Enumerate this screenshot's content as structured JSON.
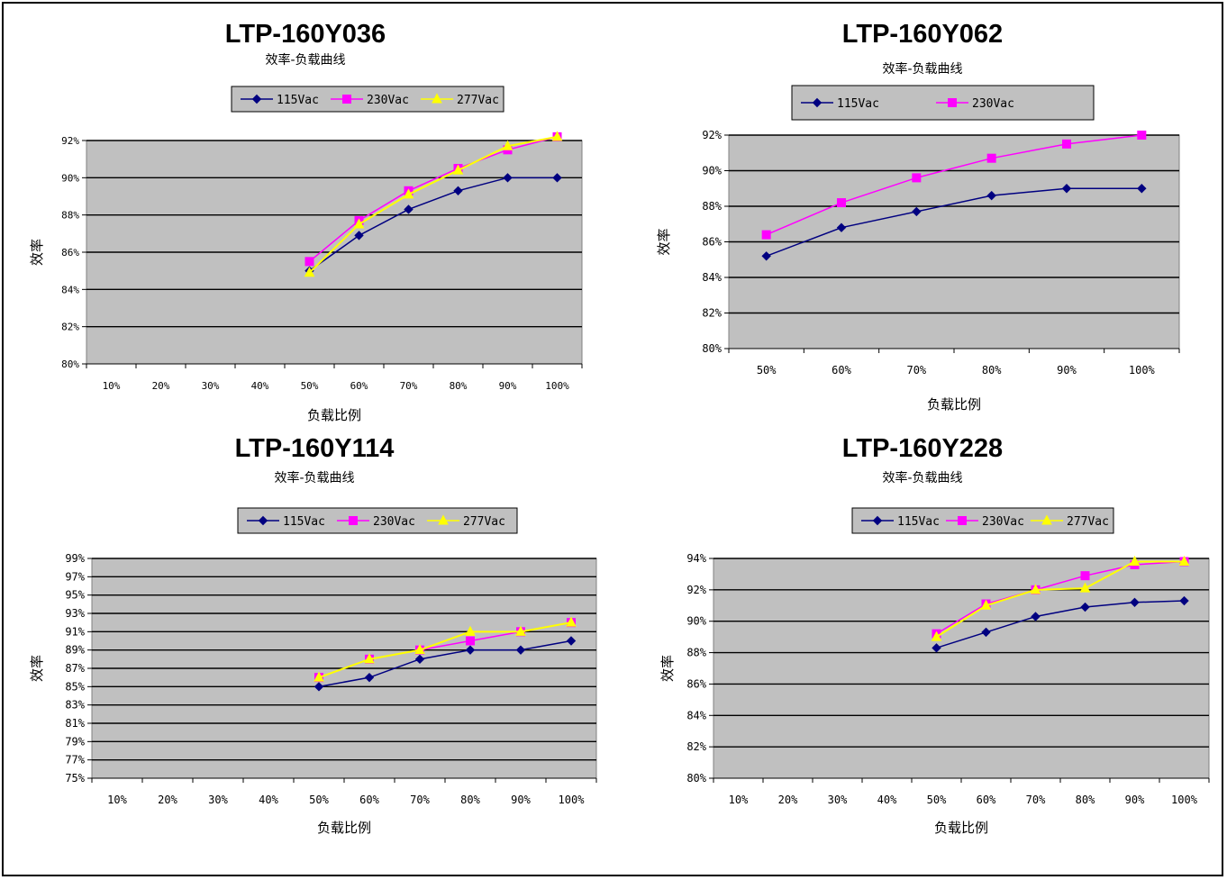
{
  "colors": {
    "plot_background": "#c0c0c0",
    "legend_background": "#c0c0c0",
    "gridline": "#000000",
    "s115": "#000080",
    "s230": "#ff00ff",
    "s277": "#ffff00"
  },
  "charts": [
    {
      "model": "LTP-160Y036",
      "subtitle": "效率-负载曲线",
      "legend": [
        "115Vac",
        "230Vac",
        "277Vac"
      ],
      "ytick_labels": [
        "80%",
        "82%",
        "84%",
        "86%",
        "88%",
        "90%",
        "92%"
      ],
      "xtick_labels": [
        "10%",
        "20%",
        "30%",
        "40%",
        "50%",
        "60%",
        "70%",
        "80%",
        "90%",
        "100%"
      ],
      "xlabel": "负载比例",
      "ylabel": "效率"
    },
    {
      "model": "LTP-160Y062",
      "subtitle": "效率-负载曲线",
      "legend": [
        "115Vac",
        "230Vac"
      ],
      "ytick_labels": [
        "80%",
        "82%",
        "84%",
        "86%",
        "88%",
        "90%",
        "92%"
      ],
      "xtick_labels": [
        "50%",
        "60%",
        "70%",
        "80%",
        "90%",
        "100%"
      ],
      "xlabel": "负载比例",
      "ylabel": "效率"
    },
    {
      "model": "LTP-160Y114",
      "subtitle": "效率-负载曲线",
      "legend": [
        "115Vac",
        "230Vac",
        "277Vac"
      ],
      "ytick_labels": [
        "75%",
        "77%",
        "79%",
        "81%",
        "83%",
        "85%",
        "87%",
        "89%",
        "91%",
        "93%",
        "95%",
        "97%",
        "99%"
      ],
      "xtick_labels": [
        "10%",
        "20%",
        "30%",
        "40%",
        "50%",
        "60%",
        "70%",
        "80%",
        "90%",
        "100%"
      ],
      "xlabel": "负载比例",
      "ylabel": "效率"
    },
    {
      "model": "LTP-160Y228",
      "subtitle": "效率-负载曲线",
      "legend": [
        "115Vac",
        "230Vac",
        "277Vac"
      ],
      "ytick_labels": [
        "80%",
        "82%",
        "84%",
        "86%",
        "88%",
        "90%",
        "92%",
        "94%"
      ],
      "xtick_labels": [
        "10%",
        "20%",
        "30%",
        "40%",
        "50%",
        "60%",
        "70%",
        "80%",
        "90%",
        "100%"
      ],
      "xlabel": "负载比例",
      "ylabel": "效率"
    }
  ],
  "chart_data": [
    {
      "type": "line",
      "title": "LTP-160Y036",
      "subtitle": "效率-负载曲线",
      "xlabel": "负载比例",
      "ylabel": "效率",
      "categories": [
        "10%",
        "20%",
        "30%",
        "40%",
        "50%",
        "60%",
        "70%",
        "80%",
        "90%",
        "100%"
      ],
      "ylim": [
        80,
        92
      ],
      "grid": true,
      "legend": "top",
      "series": [
        {
          "name": "115Vac",
          "values": [
            null,
            null,
            null,
            null,
            85.0,
            86.9,
            88.3,
            89.3,
            90.0,
            90.0
          ]
        },
        {
          "name": "230Vac",
          "values": [
            null,
            null,
            null,
            null,
            85.5,
            87.7,
            89.3,
            90.5,
            91.5,
            92.2
          ]
        },
        {
          "name": "277Vac",
          "values": [
            null,
            null,
            null,
            null,
            84.9,
            87.5,
            89.1,
            90.4,
            91.7,
            92.2
          ]
        }
      ]
    },
    {
      "type": "line",
      "title": "LTP-160Y062",
      "subtitle": "效率-负载曲线",
      "xlabel": "负载比例",
      "ylabel": "效率",
      "categories": [
        "50%",
        "60%",
        "70%",
        "80%",
        "90%",
        "100%"
      ],
      "ylim": [
        80,
        92
      ],
      "grid": true,
      "legend": "top",
      "series": [
        {
          "name": "115Vac",
          "values": [
            85.2,
            86.8,
            87.7,
            88.6,
            89.0,
            89.0
          ]
        },
        {
          "name": "230Vac",
          "values": [
            86.4,
            88.2,
            89.6,
            90.7,
            91.5,
            92.0
          ]
        }
      ]
    },
    {
      "type": "line",
      "title": "LTP-160Y114",
      "subtitle": "效率-负载曲线",
      "xlabel": "负载比例",
      "ylabel": "效率",
      "categories": [
        "10%",
        "20%",
        "30%",
        "40%",
        "50%",
        "60%",
        "70%",
        "80%",
        "90%",
        "100%"
      ],
      "ylim": [
        75,
        99
      ],
      "grid": true,
      "legend": "top",
      "series": [
        {
          "name": "115Vac",
          "values": [
            null,
            null,
            null,
            null,
            85,
            86,
            88,
            89,
            89,
            90
          ]
        },
        {
          "name": "230Vac",
          "values": [
            null,
            null,
            null,
            null,
            86,
            88,
            89,
            90,
            91,
            92
          ]
        },
        {
          "name": "277Vac",
          "values": [
            null,
            null,
            null,
            null,
            86,
            88,
            89,
            91,
            91,
            92
          ]
        }
      ]
    },
    {
      "type": "line",
      "title": "LTP-160Y228",
      "subtitle": "效率-负载曲线",
      "xlabel": "负载比例",
      "ylabel": "效率",
      "categories": [
        "10%",
        "20%",
        "30%",
        "40%",
        "50%",
        "60%",
        "70%",
        "80%",
        "90%",
        "100%"
      ],
      "ylim": [
        80,
        94
      ],
      "grid": true,
      "legend": "top",
      "series": [
        {
          "name": "115Vac",
          "values": [
            null,
            null,
            null,
            null,
            88.3,
            89.3,
            90.3,
            90.9,
            91.2,
            91.3
          ]
        },
        {
          "name": "230Vac",
          "values": [
            null,
            null,
            null,
            null,
            89.2,
            91.1,
            92.0,
            92.9,
            93.6,
            93.8
          ]
        },
        {
          "name": "277Vac",
          "values": [
            null,
            null,
            null,
            null,
            89.0,
            91.0,
            92.0,
            92.1,
            93.8,
            93.8
          ]
        }
      ]
    }
  ]
}
